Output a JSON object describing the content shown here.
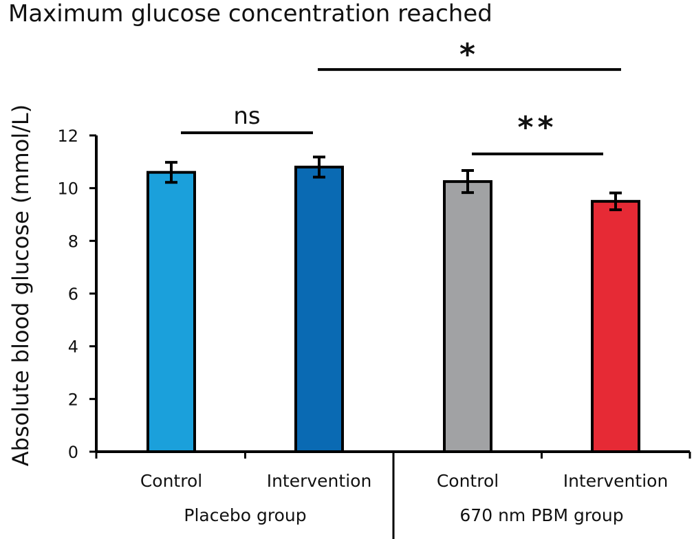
{
  "chart_data": {
    "type": "bar",
    "title": "Maximum glucose concentration reached",
    "ylabel": "Absolute blood glucose (mmol/L)",
    "xlabel": "",
    "ylim": [
      0,
      12
    ],
    "yticks": [
      0,
      2,
      4,
      6,
      8,
      10,
      12
    ],
    "grid": false,
    "groups": [
      "Placebo group",
      "670 nm PBM group"
    ],
    "categories": [
      "Control",
      "Intervention",
      "Control",
      "Intervention"
    ],
    "values": [
      10.6,
      10.8,
      10.25,
      9.5
    ],
    "errors": [
      0.38,
      0.38,
      0.42,
      0.32
    ],
    "colors": [
      "#1ba0db",
      "#0a6ab3",
      "#a1a2a4",
      "#e62a35"
    ],
    "significance": [
      {
        "label": "ns",
        "from": 0,
        "to": 1,
        "y": 12.1
      },
      {
        "label": "*",
        "from": 1,
        "to": 3,
        "y": 14.5
      },
      {
        "label": "**",
        "from": 2,
        "to": 3,
        "y": 11.3
      }
    ]
  }
}
